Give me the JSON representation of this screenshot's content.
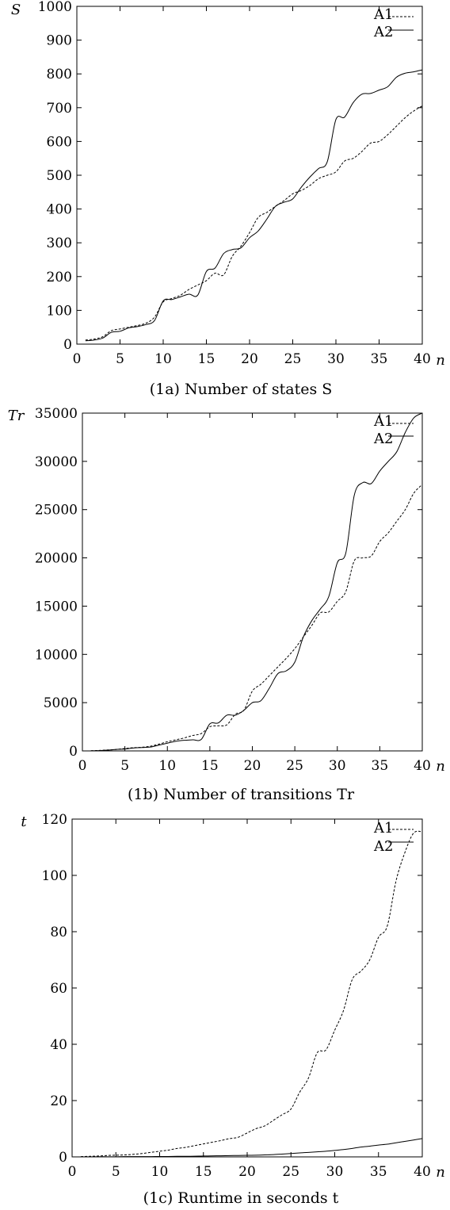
{
  "chart_data": [
    {
      "type": "line",
      "caption": "(1a) Number of states S",
      "ylabel": "S",
      "xlabel": "n",
      "xlim": [
        0,
        40
      ],
      "ylim": [
        0,
        1000
      ],
      "xticks": [
        0,
        5,
        10,
        15,
        20,
        25,
        30,
        35,
        40
      ],
      "yticks": [
        0,
        100,
        200,
        300,
        400,
        500,
        600,
        700,
        800,
        900,
        1000
      ],
      "x": [
        1,
        2,
        3,
        4,
        5,
        6,
        7,
        8,
        9,
        10,
        11,
        12,
        13,
        14,
        15,
        16,
        17,
        18,
        19,
        20,
        21,
        22,
        23,
        24,
        25,
        26,
        27,
        28,
        29,
        30,
        31,
        32,
        33,
        34,
        35,
        36,
        37,
        38,
        39,
        40
      ],
      "legend": "top-right",
      "series": [
        {
          "name": "A1",
          "style": "dashed",
          "values": [
            12,
            15,
            22,
            40,
            45,
            50,
            55,
            62,
            80,
            125,
            135,
            145,
            162,
            175,
            188,
            210,
            205,
            260,
            290,
            330,
            375,
            390,
            408,
            425,
            445,
            455,
            470,
            490,
            500,
            510,
            542,
            550,
            570,
            595,
            600,
            620,
            645,
            670,
            690,
            705
          ]
        },
        {
          "name": "A2",
          "style": "solid",
          "values": [
            10,
            12,
            18,
            35,
            38,
            48,
            52,
            58,
            70,
            128,
            132,
            140,
            148,
            145,
            215,
            225,
            268,
            280,
            285,
            315,
            335,
            370,
            408,
            420,
            430,
            465,
            495,
            520,
            540,
            665,
            672,
            715,
            740,
            742,
            752,
            762,
            790,
            802,
            806,
            812
          ]
        }
      ]
    },
    {
      "type": "line",
      "caption": "(1b) Number of transitions Tr",
      "ylabel": "Tr",
      "xlabel": "n",
      "xlim": [
        0,
        40
      ],
      "ylim": [
        0,
        35000
      ],
      "xticks": [
        0,
        5,
        10,
        15,
        20,
        25,
        30,
        35,
        40
      ],
      "yticks": [
        0,
        5000,
        10000,
        15000,
        20000,
        25000,
        30000,
        35000
      ],
      "x": [
        1,
        2,
        3,
        4,
        5,
        6,
        7,
        8,
        9,
        10,
        11,
        12,
        13,
        14,
        15,
        16,
        17,
        18,
        19,
        20,
        21,
        22,
        23,
        24,
        25,
        26,
        27,
        28,
        29,
        30,
        31,
        32,
        33,
        34,
        35,
        36,
        37,
        38,
        39,
        40
      ],
      "legend": "top-right",
      "series": [
        {
          "name": "A1",
          "style": "dashed",
          "values": [
            20,
            50,
            100,
            150,
            250,
            330,
            380,
            480,
            700,
            950,
            1150,
            1350,
            1600,
            1800,
            2500,
            2600,
            2700,
            3800,
            4200,
            6200,
            6900,
            7800,
            8700,
            9600,
            10600,
            11800,
            13000,
            14300,
            14400,
            15500,
            16500,
            19700,
            20000,
            20200,
            21700,
            22600,
            23800,
            25000,
            26700,
            27600
          ]
        },
        {
          "name": "A2",
          "style": "solid",
          "values": [
            10,
            30,
            80,
            150,
            200,
            300,
            350,
            400,
            600,
            800,
            1000,
            1100,
            1150,
            1200,
            2800,
            2900,
            3700,
            3700,
            4200,
            5000,
            5200,
            6500,
            8000,
            8300,
            9200,
            11800,
            13500,
            14700,
            16000,
            19500,
            20500,
            26500,
            27800,
            27700,
            29000,
            30000,
            31000,
            33000,
            34500,
            35000
          ]
        }
      ]
    },
    {
      "type": "line",
      "caption": "(1c) Runtime in seconds t",
      "ylabel": "t",
      "xlabel": "n",
      "xlim": [
        0,
        40
      ],
      "ylim": [
        0,
        120
      ],
      "xticks": [
        0,
        5,
        10,
        15,
        20,
        25,
        30,
        35,
        40
      ],
      "yticks": [
        0,
        20,
        40,
        60,
        80,
        100,
        120
      ],
      "x": [
        1,
        2,
        3,
        4,
        5,
        6,
        7,
        8,
        9,
        10,
        11,
        12,
        13,
        14,
        15,
        16,
        17,
        18,
        19,
        20,
        21,
        22,
        23,
        24,
        25,
        26,
        27,
        28,
        29,
        30,
        31,
        32,
        33,
        34,
        35,
        36,
        37,
        38,
        39,
        40
      ],
      "legend": "top-right",
      "series": [
        {
          "name": "A1",
          "style": "dashed",
          "values": [
            0.1,
            0.2,
            0.3,
            0.5,
            0.6,
            0.7,
            0.9,
            1.2,
            1.6,
            2.0,
            2.4,
            3.0,
            3.4,
            4.0,
            4.6,
            5.2,
            5.8,
            6.5,
            7.0,
            8.5,
            10.0,
            11.0,
            13.0,
            15.0,
            17.0,
            23.0,
            28.0,
            37.0,
            38.0,
            45.0,
            52.0,
            63.0,
            66.0,
            70.0,
            78.0,
            82.0,
            98.0,
            108.0,
            115.0,
            115.5
          ]
        },
        {
          "name": "A2",
          "style": "solid",
          "values": [
            0.0,
            0.0,
            0.05,
            0.05,
            0.05,
            0.1,
            0.1,
            0.1,
            0.1,
            0.15,
            0.15,
            0.2,
            0.2,
            0.25,
            0.3,
            0.35,
            0.4,
            0.45,
            0.5,
            0.55,
            0.6,
            0.7,
            0.8,
            1.0,
            1.2,
            1.4,
            1.6,
            1.8,
            2.0,
            2.3,
            2.6,
            3.0,
            3.5,
            3.8,
            4.2,
            4.5,
            5.0,
            5.5,
            6.0,
            6.5
          ]
        }
      ]
    }
  ]
}
